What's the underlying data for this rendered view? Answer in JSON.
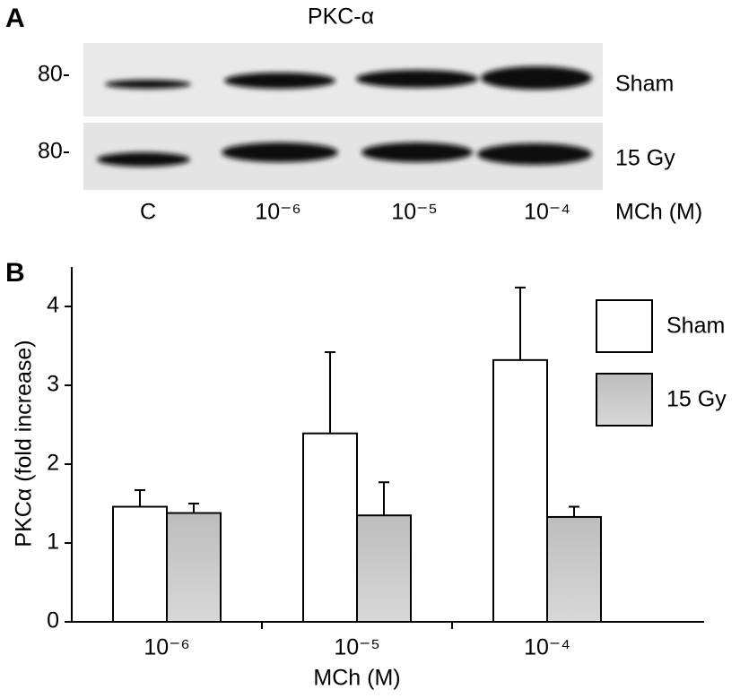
{
  "panel_a": {
    "label": "A",
    "title": "PKC-α",
    "marker_labels": [
      "80-",
      "80-"
    ],
    "row_labels": [
      "Sham",
      "15 Gy"
    ],
    "lane_labels": [
      "C",
      "10⁻⁶",
      "10⁻⁵",
      "10⁻⁴"
    ],
    "axis_label": "MCh (M)"
  },
  "chart_data": {
    "type": "bar",
    "label": "B",
    "y_label": "PKCα (fold increase)",
    "x_label": "MCh (M)",
    "categories": [
      "10⁻⁶",
      "10⁻⁵",
      "10⁻⁴"
    ],
    "series": [
      {
        "name": "Sham",
        "color": "#ffffff",
        "values": [
          1.46,
          2.39,
          3.32
        ],
        "errors": [
          0.21,
          1.03,
          0.92
        ]
      },
      {
        "name": "15 Gy",
        "color": "#c8c8c8",
        "values": [
          1.38,
          1.35,
          1.33
        ],
        "errors": [
          0.12,
          0.42,
          0.13
        ]
      }
    ],
    "ylim": [
      0,
      4.5
    ],
    "yticks": [
      0,
      1,
      2,
      3,
      4
    ],
    "legend": "upper right"
  }
}
